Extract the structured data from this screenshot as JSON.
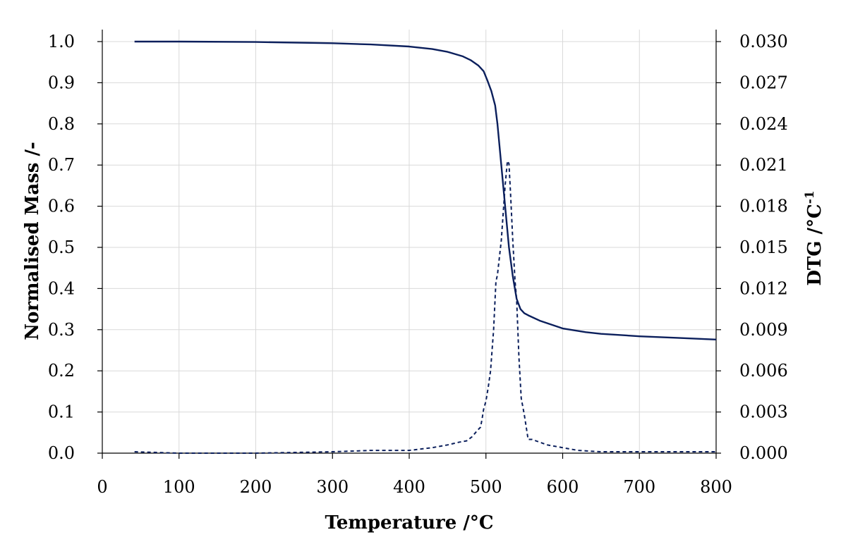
{
  "chart_data": {
    "type": "line",
    "xlabel": "Temperature /°C",
    "ylabel_left": "Normalised Mass /-",
    "ylabel_right_main": "DTG  /°C",
    "ylabel_right_sup": "-1",
    "xlim": [
      0,
      800
    ],
    "ylim_left": [
      0,
      1.0
    ],
    "ylim_right": [
      0,
      0.03
    ],
    "grid": true,
    "x_ticks": [
      "0",
      "100",
      "200",
      "300",
      "400",
      "500",
      "600",
      "700",
      "800"
    ],
    "y_left_ticks": [
      "0.0",
      "0.1",
      "0.2",
      "0.3",
      "0.4",
      "0.5",
      "0.6",
      "0.7",
      "0.8",
      "0.9",
      "1.0"
    ],
    "y_right_ticks": [
      "0.000",
      "0.003",
      "0.006",
      "0.009",
      "0.012",
      "0.015",
      "0.018",
      "0.021",
      "0.024",
      "0.027",
      "0.030"
    ],
    "colors": {
      "series": "#0b1f5c",
      "grid": "#d9d9d9"
    },
    "series": [
      {
        "axis": "left",
        "style": "solid",
        "x": [
          42,
          100,
          200,
          300,
          350,
          400,
          430,
          450,
          470,
          480,
          490,
          497,
          502,
          507,
          512,
          515,
          520,
          525,
          530,
          535,
          540,
          545,
          550,
          555,
          570,
          600,
          630,
          650,
          700,
          750,
          800
        ],
        "y": [
          1.0,
          1.0,
          0.999,
          0.996,
          0.993,
          0.988,
          0.982,
          0.975,
          0.964,
          0.955,
          0.942,
          0.928,
          0.905,
          0.88,
          0.845,
          0.8,
          0.7,
          0.6,
          0.5,
          0.43,
          0.375,
          0.35,
          0.34,
          0.335,
          0.322,
          0.303,
          0.294,
          0.29,
          0.284,
          0.28,
          0.276
        ]
      },
      {
        "axis": "right",
        "style": "dashed",
        "x": [
          42,
          100,
          200,
          300,
          350,
          400,
          430,
          450,
          465,
          475,
          482,
          488,
          493,
          495,
          497,
          500,
          503,
          506,
          510,
          513,
          515,
          520,
          525,
          528,
          530,
          532,
          535,
          538,
          540,
          543,
          546,
          550,
          555,
          560,
          570,
          580,
          590,
          600,
          620,
          650,
          700,
          750,
          800
        ],
        "y": [
          0.0001,
          0.0,
          0.0,
          0.0001,
          0.0002,
          0.0002,
          0.0004,
          0.0006,
          0.0008,
          0.0009,
          0.0012,
          0.0016,
          0.0019,
          0.0025,
          0.0032,
          0.0038,
          0.0048,
          0.006,
          0.009,
          0.0125,
          0.013,
          0.0155,
          0.0195,
          0.0213,
          0.0211,
          0.019,
          0.0155,
          0.0125,
          0.0112,
          0.007,
          0.004,
          0.0028,
          0.001,
          0.001,
          0.0008,
          0.0006,
          0.0005,
          0.0004,
          0.0002,
          0.0001,
          0.0001,
          0.0001,
          0.0001
        ]
      }
    ]
  }
}
